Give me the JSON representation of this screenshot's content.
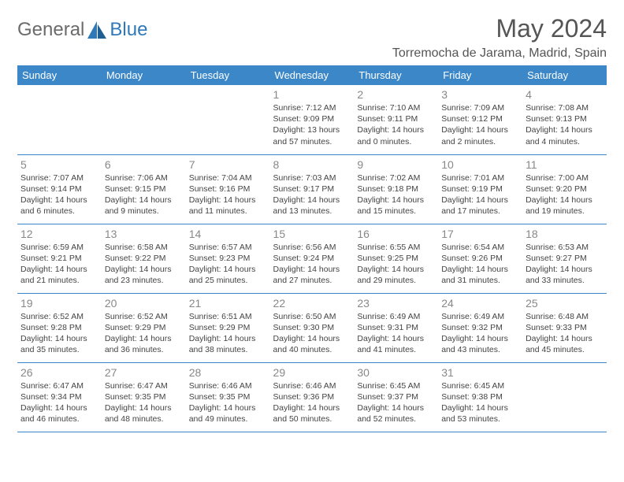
{
  "brand": {
    "part1": "General",
    "part2": "Blue"
  },
  "title": {
    "month": "May 2024",
    "location": "Torremocha de Jarama, Madrid, Spain"
  },
  "header_color": "#3b87c8",
  "divider_color": "#3b87c8",
  "weekdays": [
    "Sunday",
    "Monday",
    "Tuesday",
    "Wednesday",
    "Thursday",
    "Friday",
    "Saturday"
  ],
  "grid": [
    [
      null,
      null,
      null,
      {
        "n": "1",
        "sr": "Sunrise: 7:12 AM",
        "ss": "Sunset: 9:09 PM",
        "d1": "Daylight: 13 hours",
        "d2": "and 57 minutes."
      },
      {
        "n": "2",
        "sr": "Sunrise: 7:10 AM",
        "ss": "Sunset: 9:11 PM",
        "d1": "Daylight: 14 hours",
        "d2": "and 0 minutes."
      },
      {
        "n": "3",
        "sr": "Sunrise: 7:09 AM",
        "ss": "Sunset: 9:12 PM",
        "d1": "Daylight: 14 hours",
        "d2": "and 2 minutes."
      },
      {
        "n": "4",
        "sr": "Sunrise: 7:08 AM",
        "ss": "Sunset: 9:13 PM",
        "d1": "Daylight: 14 hours",
        "d2": "and 4 minutes."
      }
    ],
    [
      {
        "n": "5",
        "sr": "Sunrise: 7:07 AM",
        "ss": "Sunset: 9:14 PM",
        "d1": "Daylight: 14 hours",
        "d2": "and 6 minutes."
      },
      {
        "n": "6",
        "sr": "Sunrise: 7:06 AM",
        "ss": "Sunset: 9:15 PM",
        "d1": "Daylight: 14 hours",
        "d2": "and 9 minutes."
      },
      {
        "n": "7",
        "sr": "Sunrise: 7:04 AM",
        "ss": "Sunset: 9:16 PM",
        "d1": "Daylight: 14 hours",
        "d2": "and 11 minutes."
      },
      {
        "n": "8",
        "sr": "Sunrise: 7:03 AM",
        "ss": "Sunset: 9:17 PM",
        "d1": "Daylight: 14 hours",
        "d2": "and 13 minutes."
      },
      {
        "n": "9",
        "sr": "Sunrise: 7:02 AM",
        "ss": "Sunset: 9:18 PM",
        "d1": "Daylight: 14 hours",
        "d2": "and 15 minutes."
      },
      {
        "n": "10",
        "sr": "Sunrise: 7:01 AM",
        "ss": "Sunset: 9:19 PM",
        "d1": "Daylight: 14 hours",
        "d2": "and 17 minutes."
      },
      {
        "n": "11",
        "sr": "Sunrise: 7:00 AM",
        "ss": "Sunset: 9:20 PM",
        "d1": "Daylight: 14 hours",
        "d2": "and 19 minutes."
      }
    ],
    [
      {
        "n": "12",
        "sr": "Sunrise: 6:59 AM",
        "ss": "Sunset: 9:21 PM",
        "d1": "Daylight: 14 hours",
        "d2": "and 21 minutes."
      },
      {
        "n": "13",
        "sr": "Sunrise: 6:58 AM",
        "ss": "Sunset: 9:22 PM",
        "d1": "Daylight: 14 hours",
        "d2": "and 23 minutes."
      },
      {
        "n": "14",
        "sr": "Sunrise: 6:57 AM",
        "ss": "Sunset: 9:23 PM",
        "d1": "Daylight: 14 hours",
        "d2": "and 25 minutes."
      },
      {
        "n": "15",
        "sr": "Sunrise: 6:56 AM",
        "ss": "Sunset: 9:24 PM",
        "d1": "Daylight: 14 hours",
        "d2": "and 27 minutes."
      },
      {
        "n": "16",
        "sr": "Sunrise: 6:55 AM",
        "ss": "Sunset: 9:25 PM",
        "d1": "Daylight: 14 hours",
        "d2": "and 29 minutes."
      },
      {
        "n": "17",
        "sr": "Sunrise: 6:54 AM",
        "ss": "Sunset: 9:26 PM",
        "d1": "Daylight: 14 hours",
        "d2": "and 31 minutes."
      },
      {
        "n": "18",
        "sr": "Sunrise: 6:53 AM",
        "ss": "Sunset: 9:27 PM",
        "d1": "Daylight: 14 hours",
        "d2": "and 33 minutes."
      }
    ],
    [
      {
        "n": "19",
        "sr": "Sunrise: 6:52 AM",
        "ss": "Sunset: 9:28 PM",
        "d1": "Daylight: 14 hours",
        "d2": "and 35 minutes."
      },
      {
        "n": "20",
        "sr": "Sunrise: 6:52 AM",
        "ss": "Sunset: 9:29 PM",
        "d1": "Daylight: 14 hours",
        "d2": "and 36 minutes."
      },
      {
        "n": "21",
        "sr": "Sunrise: 6:51 AM",
        "ss": "Sunset: 9:29 PM",
        "d1": "Daylight: 14 hours",
        "d2": "and 38 minutes."
      },
      {
        "n": "22",
        "sr": "Sunrise: 6:50 AM",
        "ss": "Sunset: 9:30 PM",
        "d1": "Daylight: 14 hours",
        "d2": "and 40 minutes."
      },
      {
        "n": "23",
        "sr": "Sunrise: 6:49 AM",
        "ss": "Sunset: 9:31 PM",
        "d1": "Daylight: 14 hours",
        "d2": "and 41 minutes."
      },
      {
        "n": "24",
        "sr": "Sunrise: 6:49 AM",
        "ss": "Sunset: 9:32 PM",
        "d1": "Daylight: 14 hours",
        "d2": "and 43 minutes."
      },
      {
        "n": "25",
        "sr": "Sunrise: 6:48 AM",
        "ss": "Sunset: 9:33 PM",
        "d1": "Daylight: 14 hours",
        "d2": "and 45 minutes."
      }
    ],
    [
      {
        "n": "26",
        "sr": "Sunrise: 6:47 AM",
        "ss": "Sunset: 9:34 PM",
        "d1": "Daylight: 14 hours",
        "d2": "and 46 minutes."
      },
      {
        "n": "27",
        "sr": "Sunrise: 6:47 AM",
        "ss": "Sunset: 9:35 PM",
        "d1": "Daylight: 14 hours",
        "d2": "and 48 minutes."
      },
      {
        "n": "28",
        "sr": "Sunrise: 6:46 AM",
        "ss": "Sunset: 9:35 PM",
        "d1": "Daylight: 14 hours",
        "d2": "and 49 minutes."
      },
      {
        "n": "29",
        "sr": "Sunrise: 6:46 AM",
        "ss": "Sunset: 9:36 PM",
        "d1": "Daylight: 14 hours",
        "d2": "and 50 minutes."
      },
      {
        "n": "30",
        "sr": "Sunrise: 6:45 AM",
        "ss": "Sunset: 9:37 PM",
        "d1": "Daylight: 14 hours",
        "d2": "and 52 minutes."
      },
      {
        "n": "31",
        "sr": "Sunrise: 6:45 AM",
        "ss": "Sunset: 9:38 PM",
        "d1": "Daylight: 14 hours",
        "d2": "and 53 minutes."
      },
      null
    ]
  ]
}
